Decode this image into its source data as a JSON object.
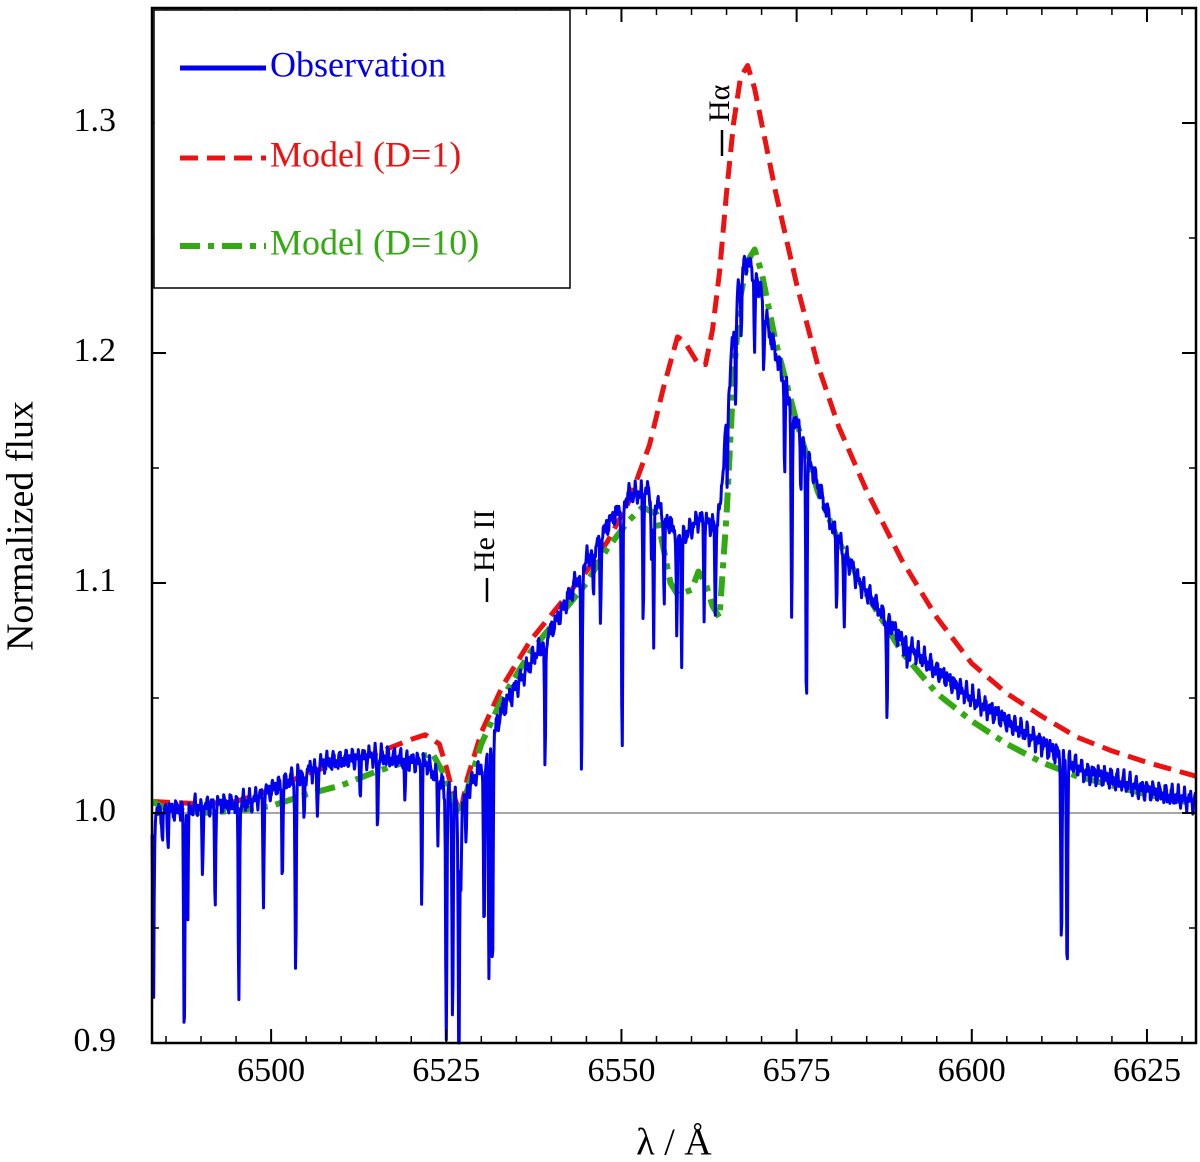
{
  "chart_data": {
    "type": "line",
    "title": "",
    "xlabel": "λ / Å",
    "ylabel": "Normalized flux",
    "xlim": [
      6483,
      6632
    ],
    "ylim": [
      0.9,
      1.35
    ],
    "xticks": [
      6500,
      6525,
      6550,
      6575,
      6600,
      6625
    ],
    "xtick_labels": [
      "6500",
      "6525",
      "6550",
      "6575",
      "6600",
      "6625"
    ],
    "yticks": [
      0.9,
      1.0,
      1.1,
      1.2,
      1.3
    ],
    "ytick_labels": [
      "0.9",
      "1.0",
      "1.1",
      "1.2",
      "1.3"
    ],
    "reference_line": 1.0,
    "legend_position": "top-left",
    "annotations": [
      {
        "text": "He II",
        "x": 6527,
        "y": 1.122
      },
      {
        "text": "Hα",
        "x": 6562.8,
        "y": 1.305
      }
    ],
    "series": [
      {
        "name": "Observation",
        "color": "#0000ee",
        "style": "solid",
        "continuum": [
          [
            6483,
            1.0
          ],
          [
            6490,
            1.003
          ],
          [
            6497,
            1.005
          ],
          [
            6503,
            1.015
          ],
          [
            6508,
            1.022
          ],
          [
            6515,
            1.025
          ],
          [
            6522,
            1.022
          ],
          [
            6525,
            1.01
          ],
          [
            6527,
            1.005
          ],
          [
            6530,
            1.02
          ],
          [
            6533,
            1.045
          ],
          [
            6537,
            1.065
          ],
          [
            6541,
            1.085
          ],
          [
            6545,
            1.11
          ],
          [
            6548,
            1.125
          ],
          [
            6551,
            1.138
          ],
          [
            6554,
            1.14
          ],
          [
            6557,
            1.125
          ],
          [
            6559,
            1.12
          ],
          [
            6561,
            1.128
          ],
          [
            6563,
            1.125
          ],
          [
            6564,
            1.13
          ],
          [
            6565,
            1.17
          ],
          [
            6566,
            1.21
          ],
          [
            6567,
            1.235
          ],
          [
            6568,
            1.24
          ],
          [
            6569,
            1.235
          ],
          [
            6570,
            1.225
          ],
          [
            6571,
            1.21
          ],
          [
            6573,
            1.19
          ],
          [
            6576,
            1.16
          ],
          [
            6580,
            1.125
          ],
          [
            6584,
            1.1
          ],
          [
            6590,
            1.075
          ],
          [
            6595,
            1.062
          ],
          [
            6600,
            1.05
          ],
          [
            6605,
            1.04
          ],
          [
            6610,
            1.03
          ],
          [
            6616,
            1.018
          ],
          [
            6620,
            1.015
          ],
          [
            6625,
            1.01
          ],
          [
            6632,
            1.005
          ]
        ],
        "absorption_lines": [
          [
            6483.2,
            0.09
          ],
          [
            6484.5,
            0.012
          ],
          [
            6485.3,
            0.013
          ],
          [
            6487.6,
            0.1
          ],
          [
            6488.1,
            0.052
          ],
          [
            6490.2,
            0.03
          ],
          [
            6492.0,
            0.045
          ],
          [
            6495.4,
            0.085
          ],
          [
            6498.9,
            0.048
          ],
          [
            6501.6,
            0.042
          ],
          [
            6503.5,
            0.083
          ],
          [
            6504.7,
            0.025
          ],
          [
            6506.6,
            0.023
          ],
          [
            6512.7,
            0.015
          ],
          [
            6515.2,
            0.032
          ],
          [
            6519.1,
            0.018
          ],
          [
            6521.5,
            0.06
          ],
          [
            6523.8,
            0.025
          ],
          [
            6525.0,
            0.11
          ],
          [
            6525.9,
            0.1
          ],
          [
            6526.8,
            0.135
          ],
          [
            6527.1,
            0.04
          ],
          [
            6527.8,
            0.025
          ],
          [
            6530.4,
            0.08
          ],
          [
            6531.1,
            0.102
          ],
          [
            6531.6,
            0.1
          ],
          [
            6539.1,
            0.06
          ],
          [
            6544.3,
            0.09
          ],
          [
            6546.0,
            0.025
          ],
          [
            6547.0,
            0.04
          ],
          [
            6550.1,
            0.11
          ],
          [
            6553.1,
            0.055
          ],
          [
            6554.3,
            0.03
          ],
          [
            6554.6,
            0.068
          ],
          [
            6556.1,
            0.044
          ],
          [
            6557.9,
            0.05
          ],
          [
            6558.6,
            0.055
          ],
          [
            6561.8,
            0.038
          ],
          [
            6563.4,
            0.043
          ],
          [
            6565.1,
            0.03
          ],
          [
            6566.3,
            0.04
          ],
          [
            6567.1,
            0.03
          ],
          [
            6569.0,
            0.038
          ],
          [
            6570.3,
            0.03
          ],
          [
            6573.3,
            0.04
          ],
          [
            6574.3,
            0.095
          ],
          [
            6575.6,
            0.02
          ],
          [
            6576.4,
            0.11
          ],
          [
            6580.7,
            0.03
          ],
          [
            6581.8,
            0.035
          ],
          [
            6587.9,
            0.043
          ],
          [
            6590.8,
            0.01
          ],
          [
            6612.8,
            0.08
          ],
          [
            6613.6,
            0.09
          ]
        ]
      },
      {
        "name": "Model (D=1)",
        "color": "#ee1111",
        "style": "dashed",
        "points": [
          [
            6483,
            1.005
          ],
          [
            6490,
            1.004
          ],
          [
            6495,
            1.005
          ],
          [
            6500,
            1.01
          ],
          [
            6505,
            1.017
          ],
          [
            6510,
            1.022
          ],
          [
            6515,
            1.026
          ],
          [
            6520,
            1.032
          ],
          [
            6522,
            1.034
          ],
          [
            6524,
            1.03
          ],
          [
            6525,
            1.02
          ],
          [
            6526,
            1.008
          ],
          [
            6527,
            1.0
          ],
          [
            6528,
            1.015
          ],
          [
            6530,
            1.035
          ],
          [
            6533,
            1.055
          ],
          [
            6537,
            1.075
          ],
          [
            6541,
            1.09
          ],
          [
            6545,
            1.105
          ],
          [
            6548,
            1.118
          ],
          [
            6551,
            1.135
          ],
          [
            6554,
            1.16
          ],
          [
            6556,
            1.185
          ],
          [
            6558,
            1.207
          ],
          [
            6559,
            1.205
          ],
          [
            6560,
            1.2
          ],
          [
            6561,
            1.195
          ],
          [
            6562,
            1.195
          ],
          [
            6563,
            1.21
          ],
          [
            6564,
            1.235
          ],
          [
            6565,
            1.27
          ],
          [
            6566,
            1.3
          ],
          [
            6567,
            1.32
          ],
          [
            6568,
            1.325
          ],
          [
            6569,
            1.315
          ],
          [
            6570,
            1.3
          ],
          [
            6572,
            1.27
          ],
          [
            6575,
            1.23
          ],
          [
            6578,
            1.195
          ],
          [
            6581,
            1.168
          ],
          [
            6585,
            1.14
          ],
          [
            6590,
            1.11
          ],
          [
            6595,
            1.085
          ],
          [
            6600,
            1.065
          ],
          [
            6605,
            1.052
          ],
          [
            6610,
            1.042
          ],
          [
            6615,
            1.033
          ],
          [
            6620,
            1.027
          ],
          [
            6625,
            1.022
          ],
          [
            6632,
            1.016
          ]
        ]
      },
      {
        "name": "Model (D=10)",
        "color": "#33aa11",
        "style": "dashdot",
        "points": [
          [
            6483,
            1.005
          ],
          [
            6485,
            1.002
          ],
          [
            6490,
            1.0
          ],
          [
            6495,
            1.001
          ],
          [
            6500,
            1.003
          ],
          [
            6505,
            1.008
          ],
          [
            6510,
            1.012
          ],
          [
            6515,
            1.018
          ],
          [
            6520,
            1.023
          ],
          [
            6523,
            1.026
          ],
          [
            6525,
            1.015
          ],
          [
            6526,
            1.005
          ],
          [
            6527,
            1.0
          ],
          [
            6528,
            1.01
          ],
          [
            6530,
            1.03
          ],
          [
            6533,
            1.05
          ],
          [
            6537,
            1.07
          ],
          [
            6541,
            1.085
          ],
          [
            6545,
            1.1
          ],
          [
            6548,
            1.115
          ],
          [
            6551,
            1.127
          ],
          [
            6553,
            1.133
          ],
          [
            6555,
            1.13
          ],
          [
            6556,
            1.115
          ],
          [
            6557,
            1.1
          ],
          [
            6558,
            1.095
          ],
          [
            6560,
            1.097
          ],
          [
            6561,
            1.105
          ],
          [
            6562,
            1.1
          ],
          [
            6563,
            1.09
          ],
          [
            6564,
            1.085
          ],
          [
            6565,
            1.13
          ],
          [
            6566,
            1.19
          ],
          [
            6567,
            1.225
          ],
          [
            6568,
            1.24
          ],
          [
            6569,
            1.245
          ],
          [
            6570,
            1.235
          ],
          [
            6572,
            1.205
          ],
          [
            6575,
            1.17
          ],
          [
            6578,
            1.14
          ],
          [
            6581,
            1.118
          ],
          [
            6585,
            1.095
          ],
          [
            6590,
            1.07
          ],
          [
            6595,
            1.052
          ],
          [
            6600,
            1.04
          ],
          [
            6605,
            1.03
          ],
          [
            6610,
            1.022
          ],
          [
            6615,
            1.016
          ],
          [
            6620,
            1.012
          ],
          [
            6625,
            1.008
          ],
          [
            6632,
            1.004
          ]
        ]
      }
    ]
  }
}
